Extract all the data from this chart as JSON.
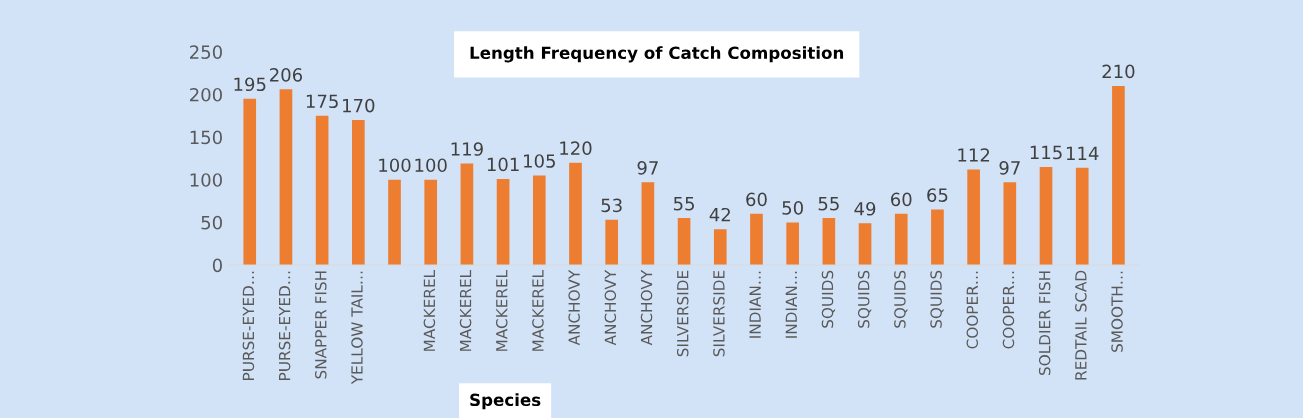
{
  "chart_data": {
    "type": "bar",
    "title": "Length Frequency of Catch Composition",
    "xlabel": "Species",
    "categories": [
      "PURSE-EYED…",
      "PURSE-EYED…",
      "SNAPPER FISH",
      "YELLOW TAIL…",
      null,
      "MACKEREL",
      "MACKEREL",
      "MACKEREL",
      "MACKEREL",
      "ANCHOVY",
      "ANCHOVY",
      "ANCHOVY",
      "SILVERSIDE",
      "SILVERSIDE",
      "INDIAN…",
      "INDIAN…",
      "SQUIDS",
      "SQUIDS",
      "SQUIDS",
      "SQUIDS",
      "COOPER…",
      "COOPER…",
      "SOLDIER FISH",
      "REDTAIL SCAD",
      "SMOOTH…"
    ],
    "values": [
      195,
      206,
      175,
      170,
      100,
      100,
      119,
      101,
      105,
      120,
      53,
      97,
      55,
      42,
      60,
      50,
      55,
      49,
      60,
      65,
      112,
      97,
      115,
      114,
      210
    ],
    "color": "#ed7d31",
    "ylim": [
      0,
      250
    ],
    "yticks": [
      0,
      50,
      100,
      150,
      200,
      250
    ],
    "data_labels": true,
    "grid": false,
    "legend": false
  }
}
